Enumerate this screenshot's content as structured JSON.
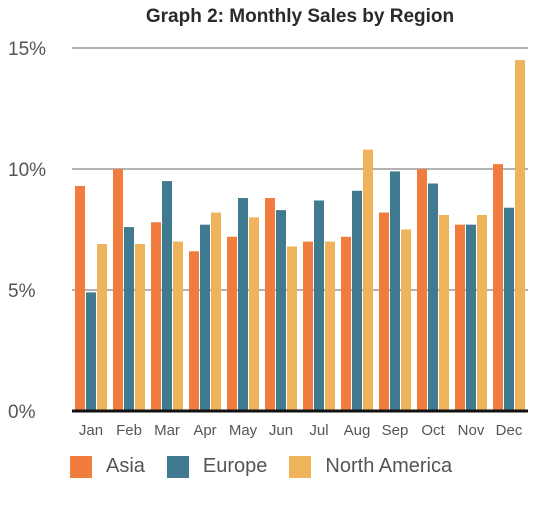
{
  "chart_data": {
    "type": "bar",
    "title": "Graph 2: Monthly Sales by Region",
    "categories": [
      "Jan",
      "Feb",
      "Mar",
      "Apr",
      "May",
      "Jun",
      "Jul",
      "Aug",
      "Sep",
      "Oct",
      "Nov",
      "Dec"
    ],
    "series": [
      {
        "name": "Asia",
        "color": "#F07C3D",
        "values": [
          9.3,
          10.0,
          7.8,
          6.6,
          7.2,
          8.8,
          7.0,
          7.2,
          8.2,
          10.0,
          7.7,
          10.2
        ]
      },
      {
        "name": "Europe",
        "color": "#3F7A90",
        "values": [
          4.9,
          7.6,
          9.5,
          7.7,
          8.8,
          8.3,
          8.7,
          9.1,
          9.9,
          9.4,
          7.7,
          8.4
        ]
      },
      {
        "name": "North America",
        "color": "#EFB35B",
        "values": [
          6.9,
          6.9,
          7.0,
          8.2,
          8.0,
          6.8,
          7.0,
          10.8,
          7.5,
          8.1,
          8.1,
          14.5
        ]
      }
    ],
    "ylim": [
      0,
      15
    ],
    "yticks": [
      "0%",
      "5%",
      "10%",
      "15%"
    ],
    "ytick_values": [
      0,
      5,
      10,
      15
    ],
    "grid": true,
    "legend_position": "bottom"
  }
}
